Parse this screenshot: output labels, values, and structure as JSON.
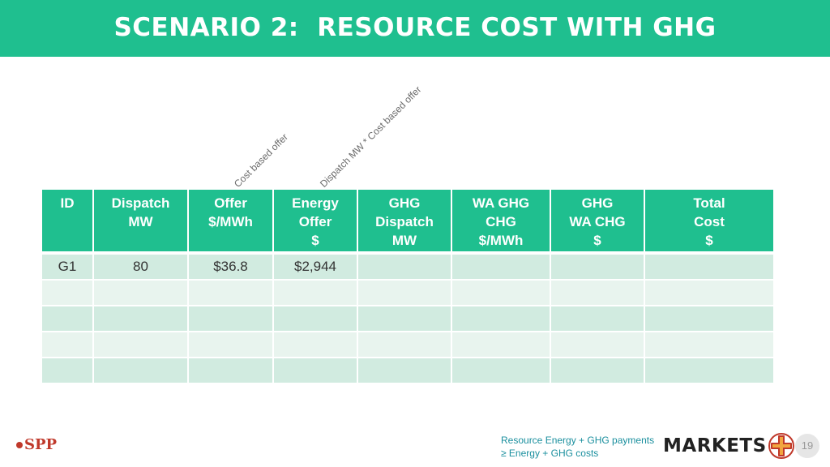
{
  "header": {
    "title": "SCENARIO 2:  RESOURCE COST WITH GHG"
  },
  "annotations": {
    "offer_note": "Cost based offer",
    "energy_note": "Dispatch MW * Cost based offer"
  },
  "table": {
    "columns": [
      [
        "ID"
      ],
      [
        "Dispatch",
        "MW"
      ],
      [
        "Offer",
        "$/MWh"
      ],
      [
        "Energy",
        "Offer",
        "$"
      ],
      [
        "GHG",
        "Dispatch",
        "MW"
      ],
      [
        "WA GHG",
        "CHG",
        "$/MWh"
      ],
      [
        "GHG",
        "WA CHG",
        "$"
      ],
      [
        "Total",
        "Cost",
        "$"
      ]
    ],
    "rows": [
      [
        "G1",
        "80",
        "$36.8",
        "$2,944",
        "",
        "",
        "",
        ""
      ],
      [
        "",
        "",
        "",
        "",
        "",
        "",
        "",
        ""
      ],
      [
        "",
        "",
        "",
        "",
        "",
        "",
        "",
        ""
      ],
      [
        "",
        "",
        "",
        "",
        "",
        "",
        "",
        ""
      ],
      [
        "",
        "",
        "",
        "",
        "",
        "",
        "",
        ""
      ]
    ]
  },
  "footer": {
    "logo_text": "SPP",
    "note_line1": "Resource Energy + GHG payments",
    "note_line2": "≥ Energy + GHG costs",
    "brand": "MARKETS",
    "page_number": "19"
  },
  "colors": {
    "accent": "#1fbf8f",
    "row_dark": "#d1ebe0",
    "row_light": "#e8f4ee",
    "spp_red": "#c0392b",
    "note_teal": "#1a8f9e"
  }
}
